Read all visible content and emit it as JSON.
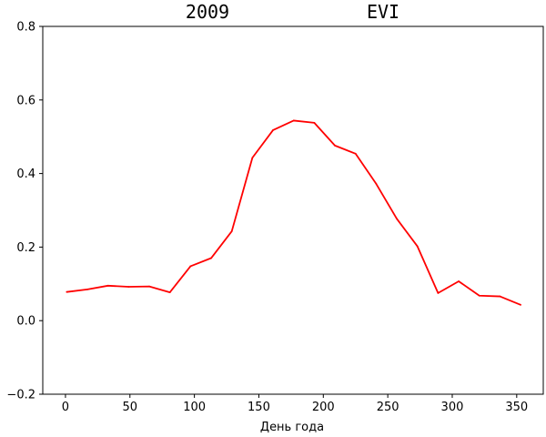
{
  "chart_data": {
    "type": "line",
    "title_left": "2009",
    "title_right": "EVI",
    "xlabel": "День года",
    "ylabel": "",
    "xlim": [
      -17.6,
      370.6
    ],
    "ylim": [
      -0.2,
      0.8
    ],
    "xticks": [
      0,
      50,
      100,
      150,
      200,
      250,
      300,
      350
    ],
    "yticks": [
      -0.2,
      0.0,
      0.2,
      0.4,
      0.6,
      0.8
    ],
    "ytick_labels": [
      "−0.2",
      "0.0",
      "0.2",
      "0.4",
      "0.6",
      "0.8"
    ],
    "grid": false,
    "series": [
      {
        "color": "#ff0000",
        "x": [
          1,
          17,
          33,
          49,
          65,
          81,
          97,
          113,
          129,
          145,
          161,
          177,
          193,
          209,
          225,
          241,
          257,
          273,
          289,
          305,
          321,
          337,
          353
        ],
        "y": [
          0.078,
          0.085,
          0.095,
          0.092,
          0.093,
          0.077,
          0.148,
          0.17,
          0.243,
          0.443,
          0.518,
          0.544,
          0.538,
          0.476,
          0.454,
          0.372,
          0.277,
          0.202,
          0.075,
          0.107,
          0.068,
          0.066,
          0.043
        ]
      }
    ]
  }
}
